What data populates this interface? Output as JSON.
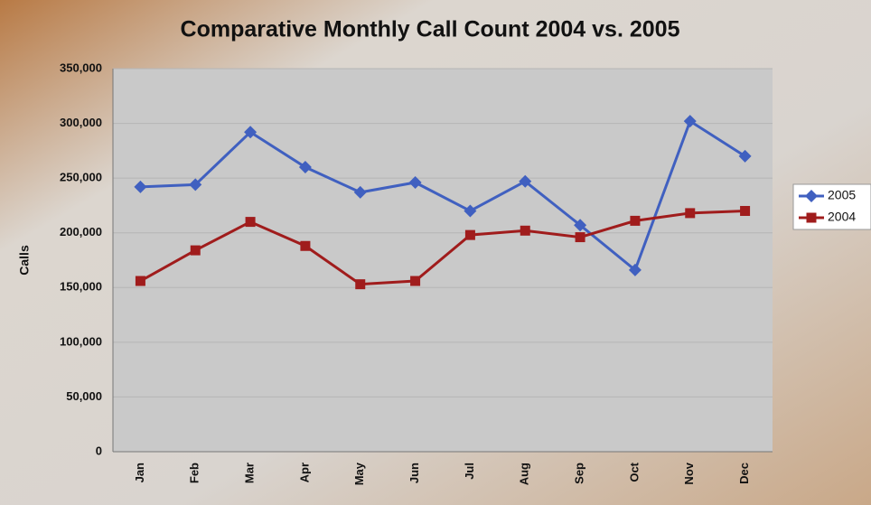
{
  "chart_data": {
    "type": "line",
    "title": "Comparative Monthly Call Count 2004 vs. 2005",
    "y_label": "Calls",
    "categories": [
      "Jan",
      "Feb",
      "Mar",
      "Apr",
      "May",
      "Jun",
      "Jul",
      "Aug",
      "Sep",
      "Oct",
      "Nov",
      "Dec"
    ],
    "series": [
      {
        "name": "2005",
        "color": "#4060c0",
        "marker": "diamond",
        "values": [
          242000,
          244000,
          292000,
          260000,
          237000,
          246000,
          220000,
          247000,
          207000,
          166000,
          302000,
          270000
        ]
      },
      {
        "name": "2004",
        "color": "#a01c1c",
        "marker": "square",
        "values": [
          156000,
          184000,
          210000,
          188000,
          153000,
          156000,
          198000,
          202000,
          196000,
          211000,
          218000,
          220000
        ]
      }
    ],
    "ylim": [
      0,
      350000
    ],
    "yticks": [
      0,
      {
        "value": 50000,
        "label": "50,000"
      },
      {
        "value": 100000,
        "label": "100,000"
      },
      {
        "value": 150000,
        "label": "150,000"
      },
      {
        "value": 200000,
        "label": "200,000"
      },
      {
        "value": 250000,
        "label": "250,000"
      },
      {
        "value": 300000,
        "label": "300,000"
      },
      {
        "value": 350000,
        "label": "350,000"
      }
    ],
    "grid": true,
    "legend": "right"
  }
}
